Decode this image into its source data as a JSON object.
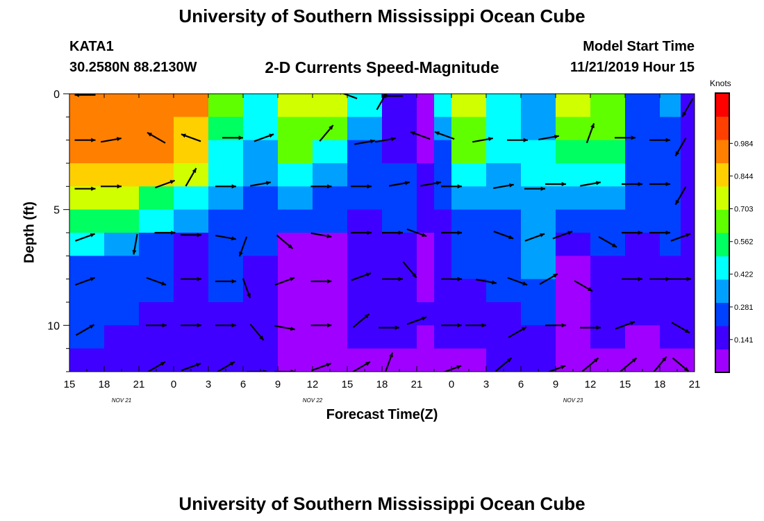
{
  "header": {
    "title_top": "University of Southern Mississippi Ocean Cube",
    "title_bottom": "University of Southern Mississippi Ocean Cube",
    "station_id": "KATA1",
    "coordinates": "30.2580N 88.2130W",
    "plot_title": "2-D Currents Speed-Magnitude",
    "model_start_label": "Model Start Time",
    "model_start_value": "11/21/2019 Hour 15"
  },
  "chart_data": {
    "type": "heatmap",
    "xlabel": "Forecast Time(Z)",
    "ylabel": "Depth (ft)",
    "x_tick_labels": [
      "15",
      "18",
      "21",
      "0",
      "3",
      "6",
      "9",
      "12",
      "15",
      "18",
      "21",
      "0",
      "3",
      "6",
      "9",
      "12",
      "15",
      "18",
      "21"
    ],
    "date_labels": [
      {
        "label": "NOV  21",
        "after_tick": 1.5
      },
      {
        "label": "NOV  22",
        "after_tick": 7.0
      },
      {
        "label": "NOV  23",
        "after_tick": 14.5
      }
    ],
    "ylim": [
      0,
      12
    ],
    "y_ticks": [
      0,
      5,
      10
    ],
    "y_direction": "depth increases downward",
    "colorbar": {
      "unit": "Knots",
      "range": [
        0,
        1.2
      ],
      "tick_values": [
        0.141,
        0.281,
        0.422,
        0.562,
        0.703,
        0.844,
        0.984
      ],
      "tick_labels": [
        "0.141",
        "0.281",
        "0.422",
        "0.562",
        "0.703",
        "0.844",
        "0.984"
      ],
      "colors": [
        "#a000ff",
        "#4000ff",
        "#0040ff",
        "#00a0ff",
        "#00ffff",
        "#00ff60",
        "#60ff00",
        "#d0ff00",
        "#ffd000",
        "#ff8000",
        "#ff4000",
        "#ff0000"
      ]
    },
    "depth_rows": [
      0,
      1,
      2,
      3,
      4,
      5,
      6,
      7,
      8,
      9,
      10,
      11,
      12
    ],
    "speed_columns": [
      {
        "t": 0,
        "s": [
          0.98,
          0.95,
          0.9,
          0.84,
          0.7,
          0.56,
          0.4,
          0.28,
          0.24,
          0.22,
          0.2,
          0.15
        ]
      },
      {
        "t": 1,
        "s": [
          0.98,
          0.96,
          0.92,
          0.86,
          0.72,
          0.55,
          0.38,
          0.25,
          0.22,
          0.2,
          0.18,
          0.13
        ]
      },
      {
        "t": 2,
        "s": [
          0.96,
          0.94,
          0.9,
          0.82,
          0.58,
          0.4,
          0.22,
          0.2,
          0.2,
          0.18,
          0.14,
          0.11
        ]
      },
      {
        "t": 3,
        "s": [
          0.92,
          0.88,
          0.82,
          0.74,
          0.44,
          0.3,
          0.1,
          0.1,
          0.12,
          0.13,
          0.12,
          0.1
        ]
      },
      {
        "t": 4,
        "s": [
          0.6,
          0.5,
          0.45,
          0.4,
          0.3,
          0.24,
          0.2,
          0.2,
          0.22,
          0.18,
          0.14,
          0.1
        ]
      },
      {
        "t": 5,
        "s": [
          0.45,
          0.4,
          0.38,
          0.34,
          0.26,
          0.22,
          0.2,
          0.18,
          0.18,
          0.16,
          0.14,
          0.1
        ]
      },
      {
        "t": 6,
        "s": [
          0.7,
          0.66,
          0.6,
          0.4,
          0.3,
          0.24,
          0.06,
          0.05,
          0.05,
          0.06,
          0.07,
          0.05
        ]
      },
      {
        "t": 7,
        "s": [
          0.72,
          0.68,
          0.4,
          0.32,
          0.26,
          0.2,
          0.05,
          0.04,
          0.05,
          0.06,
          0.05,
          0.04
        ]
      },
      {
        "t": 8,
        "s": [
          0.4,
          0.32,
          0.28,
          0.26,
          0.22,
          0.18,
          0.14,
          0.13,
          0.14,
          0.13,
          0.11,
          0.08
        ]
      },
      {
        "t": 9,
        "s": [
          0.15,
          0.16,
          0.18,
          0.2,
          0.22,
          0.2,
          0.18,
          0.16,
          0.15,
          0.14,
          0.12,
          0.09
        ]
      },
      {
        "t": 10,
        "s": [
          0.05,
          0.06,
          0.08,
          0.1,
          0.12,
          0.1,
          0.08,
          0.08,
          0.09,
          0.1,
          0.08,
          0.05
        ]
      },
      {
        "t": 10.5,
        "s": [
          0.4,
          0.3,
          0.26,
          0.22,
          0.2,
          0.18,
          0.15,
          0.14,
          0.16,
          0.18,
          0.14,
          0.08
        ]
      },
      {
        "t": 11,
        "s": [
          0.72,
          0.68,
          0.62,
          0.45,
          0.3,
          0.24,
          0.22,
          0.2,
          0.18,
          0.15,
          0.12,
          0.08
        ]
      },
      {
        "t": 12,
        "s": [
          0.48,
          0.45,
          0.42,
          0.35,
          0.3,
          0.28,
          0.26,
          0.24,
          0.22,
          0.18,
          0.14,
          0.1
        ]
      },
      {
        "t": 13,
        "s": [
          0.36,
          0.38,
          0.4,
          0.4,
          0.38,
          0.36,
          0.34,
          0.3,
          0.26,
          0.2,
          0.16,
          0.12
        ]
      },
      {
        "t": 14,
        "s": [
          0.72,
          0.66,
          0.56,
          0.4,
          0.3,
          0.24,
          0.14,
          0.08,
          0.08,
          0.08,
          0.06,
          0.05
        ]
      },
      {
        "t": 15,
        "s": [
          0.68,
          0.6,
          0.5,
          0.42,
          0.32,
          0.26,
          0.2,
          0.18,
          0.18,
          0.14,
          0.12,
          0.08
        ]
      },
      {
        "t": 16,
        "s": [
          0.28,
          0.26,
          0.25,
          0.24,
          0.22,
          0.2,
          0.18,
          0.16,
          0.14,
          0.11,
          0.08,
          0.06
        ]
      },
      {
        "t": 17,
        "s": [
          0.3,
          0.28,
          0.27,
          0.25,
          0.24,
          0.22,
          0.2,
          0.18,
          0.16,
          0.13,
          0.1,
          0.08
        ]
      },
      {
        "t": 17.6,
        "s": [
          0.18,
          0.16,
          0.15,
          0.16,
          0.18,
          0.18,
          0.17,
          0.16,
          0.14,
          0.12,
          0.1,
          0.08
        ]
      },
      {
        "t": 18,
        "s": [
          0.12,
          0.1,
          0.1,
          0.11,
          0.12,
          0.12,
          0.12,
          0.11,
          0.1,
          0.1,
          0.09,
          0.08
        ]
      }
    ],
    "vector_rows": [
      0.5,
      2,
      4,
      6,
      8,
      10,
      12
    ],
    "vector_times": [
      0.45,
      1.2,
      2.0,
      2.75,
      3.5,
      4.3,
      5.0,
      5.75,
      6.5,
      7.25,
      8.0,
      8.4,
      9.1,
      9.75,
      10.5,
      11.0,
      11.7,
      12.5,
      13.2,
      14.0,
      14.75,
      15.5,
      16.2,
      17.0,
      17.6,
      18.0
    ],
    "vectors": [
      {
        "t": 0.45,
        "d": 0.05,
        "a": 180
      },
      {
        "t": 8.0,
        "d": 0.05,
        "a": 200
      },
      {
        "t": 9.3,
        "d": 0.1,
        "a": 180
      },
      {
        "t": 9.0,
        "d": 0.3,
        "a": -60
      },
      {
        "t": 17.8,
        "d": 0.6,
        "a": 120
      },
      {
        "t": 0.45,
        "d": 2,
        "a": 0
      },
      {
        "t": 1.2,
        "d": 2,
        "a": -10
      },
      {
        "t": 2.5,
        "d": 1.9,
        "a": -150
      },
      {
        "t": 3.5,
        "d": 1.9,
        "a": -160
      },
      {
        "t": 4.7,
        "d": 1.9,
        "a": 0
      },
      {
        "t": 5.6,
        "d": 1.9,
        "a": -20
      },
      {
        "t": 7.4,
        "d": 1.7,
        "a": -50
      },
      {
        "t": 8.5,
        "d": 2.1,
        "a": -10
      },
      {
        "t": 9.1,
        "d": 2,
        "a": -10
      },
      {
        "t": 10.1,
        "d": 1.8,
        "a": -160
      },
      {
        "t": 10.8,
        "d": 1.8,
        "a": -160
      },
      {
        "t": 11.9,
        "d": 2,
        "a": -10
      },
      {
        "t": 12.9,
        "d": 2,
        "a": 0
      },
      {
        "t": 13.8,
        "d": 1.9,
        "a": -10
      },
      {
        "t": 15.0,
        "d": 1.7,
        "a": -70
      },
      {
        "t": 16.0,
        "d": 1.9,
        "a": 0
      },
      {
        "t": 17.0,
        "d": 2,
        "a": 0
      },
      {
        "t": 17.6,
        "d": 2.3,
        "a": 120
      },
      {
        "t": 0.45,
        "d": 4.1,
        "a": 0
      },
      {
        "t": 1.2,
        "d": 4,
        "a": 0
      },
      {
        "t": 2.75,
        "d": 3.9,
        "a": -20
      },
      {
        "t": 3.5,
        "d": 3.6,
        "a": -60
      },
      {
        "t": 4.5,
        "d": 4,
        "a": 0
      },
      {
        "t": 5.5,
        "d": 3.9,
        "a": -10
      },
      {
        "t": 7.25,
        "d": 4,
        "a": 0
      },
      {
        "t": 8.4,
        "d": 4,
        "a": 0
      },
      {
        "t": 9.5,
        "d": 3.9,
        "a": -10
      },
      {
        "t": 10.4,
        "d": 3.9,
        "a": -10
      },
      {
        "t": 11.0,
        "d": 4,
        "a": 0
      },
      {
        "t": 12.5,
        "d": 4,
        "a": -10
      },
      {
        "t": 13.4,
        "d": 4.1,
        "a": 0
      },
      {
        "t": 14.0,
        "d": 3.9,
        "a": 0
      },
      {
        "t": 15.0,
        "d": 3.9,
        "a": -10
      },
      {
        "t": 16.2,
        "d": 3.9,
        "a": 0
      },
      {
        "t": 17.0,
        "d": 3.9,
        "a": 0
      },
      {
        "t": 17.6,
        "d": 4.4,
        "a": 120
      },
      {
        "t": 0.45,
        "d": 6.2,
        "a": -20
      },
      {
        "t": 1.9,
        "d": 6.5,
        "a": 100
      },
      {
        "t": 2.75,
        "d": 6,
        "a": 0
      },
      {
        "t": 3.5,
        "d": 6.1,
        "a": 0
      },
      {
        "t": 4.5,
        "d": 6.2,
        "a": 10
      },
      {
        "t": 5.0,
        "d": 6.6,
        "a": 110
      },
      {
        "t": 6.2,
        "d": 6.4,
        "a": 40
      },
      {
        "t": 7.25,
        "d": 6.1,
        "a": 10
      },
      {
        "t": 8.4,
        "d": 6.0,
        "a": 0
      },
      {
        "t": 9.3,
        "d": 6.0,
        "a": 0
      },
      {
        "t": 10.0,
        "d": 6,
        "a": 20
      },
      {
        "t": 11.0,
        "d": 6,
        "a": 0
      },
      {
        "t": 12.5,
        "d": 6.1,
        "a": 20
      },
      {
        "t": 13.4,
        "d": 6.2,
        "a": -20
      },
      {
        "t": 14.2,
        "d": 6.1,
        "a": -20
      },
      {
        "t": 15.5,
        "d": 6.4,
        "a": 30
      },
      {
        "t": 16.2,
        "d": 6.0,
        "a": 0
      },
      {
        "t": 17.0,
        "d": 6.0,
        "a": 0
      },
      {
        "t": 17.6,
        "d": 6.2,
        "a": -20
      },
      {
        "t": 0.45,
        "d": 8.1,
        "a": -20
      },
      {
        "t": 2.5,
        "d": 8.1,
        "a": 20
      },
      {
        "t": 3.5,
        "d": 8.0,
        "a": 0
      },
      {
        "t": 4.5,
        "d": 8.1,
        "a": 0
      },
      {
        "t": 5.1,
        "d": 8.4,
        "a": 70
      },
      {
        "t": 6.2,
        "d": 8.1,
        "a": -20
      },
      {
        "t": 7.25,
        "d": 8.1,
        "a": 0
      },
      {
        "t": 8.4,
        "d": 7.9,
        "a": -20
      },
      {
        "t": 9.3,
        "d": 8.0,
        "a": 0
      },
      {
        "t": 9.8,
        "d": 7.6,
        "a": 50
      },
      {
        "t": 11.0,
        "d": 8.0,
        "a": 0
      },
      {
        "t": 12.0,
        "d": 8.1,
        "a": 10
      },
      {
        "t": 12.9,
        "d": 8.1,
        "a": 20
      },
      {
        "t": 13.8,
        "d": 8.0,
        "a": -30
      },
      {
        "t": 14.8,
        "d": 8.3,
        "a": 30
      },
      {
        "t": 16.2,
        "d": 8.0,
        "a": 0
      },
      {
        "t": 17.0,
        "d": 8.0,
        "a": 0
      },
      {
        "t": 17.6,
        "d": 8.0,
        "a": 0
      },
      {
        "t": 0.45,
        "d": 10.2,
        "a": -30
      },
      {
        "t": 2.5,
        "d": 10.0,
        "a": 0
      },
      {
        "t": 3.5,
        "d": 10.0,
        "a": 0
      },
      {
        "t": 4.5,
        "d": 10.0,
        "a": 0
      },
      {
        "t": 5.4,
        "d": 10.3,
        "a": 50
      },
      {
        "t": 6.2,
        "d": 10.1,
        "a": 10
      },
      {
        "t": 7.25,
        "d": 10.0,
        "a": 0
      },
      {
        "t": 8.4,
        "d": 9.8,
        "a": -40
      },
      {
        "t": 9.2,
        "d": 10.1,
        "a": 0
      },
      {
        "t": 10.0,
        "d": 9.8,
        "a": -20
      },
      {
        "t": 11.0,
        "d": 10.0,
        "a": 0
      },
      {
        "t": 11.7,
        "d": 10.0,
        "a": 0
      },
      {
        "t": 12.9,
        "d": 10.3,
        "a": -30
      },
      {
        "t": 14.0,
        "d": 10.0,
        "a": 0
      },
      {
        "t": 15.0,
        "d": 10.1,
        "a": 0
      },
      {
        "t": 16.0,
        "d": 10.0,
        "a": -20
      },
      {
        "t": 17.6,
        "d": 10.1,
        "a": 30
      },
      {
        "t": 2.5,
        "d": 11.8,
        "a": -30
      },
      {
        "t": 3.5,
        "d": 11.8,
        "a": -20
      },
      {
        "t": 4.5,
        "d": 11.8,
        "a": -30
      },
      {
        "t": 5.4,
        "d": 12,
        "a": 0
      },
      {
        "t": 6.2,
        "d": 12,
        "a": 0
      },
      {
        "t": 7.25,
        "d": 11.8,
        "a": -20
      },
      {
        "t": 8.4,
        "d": 11.8,
        "a": -30
      },
      {
        "t": 9.2,
        "d": 11.6,
        "a": -70
      },
      {
        "t": 11.0,
        "d": 11.9,
        "a": -20
      },
      {
        "t": 12.5,
        "d": 11.7,
        "a": -40
      },
      {
        "t": 14.0,
        "d": 11.9,
        "a": -20
      },
      {
        "t": 15.0,
        "d": 11.7,
        "a": -40
      },
      {
        "t": 16.1,
        "d": 11.7,
        "a": -40
      },
      {
        "t": 17.0,
        "d": 11.7,
        "a": -50
      },
      {
        "t": 17.6,
        "d": 11.7,
        "a": 40
      }
    ]
  }
}
